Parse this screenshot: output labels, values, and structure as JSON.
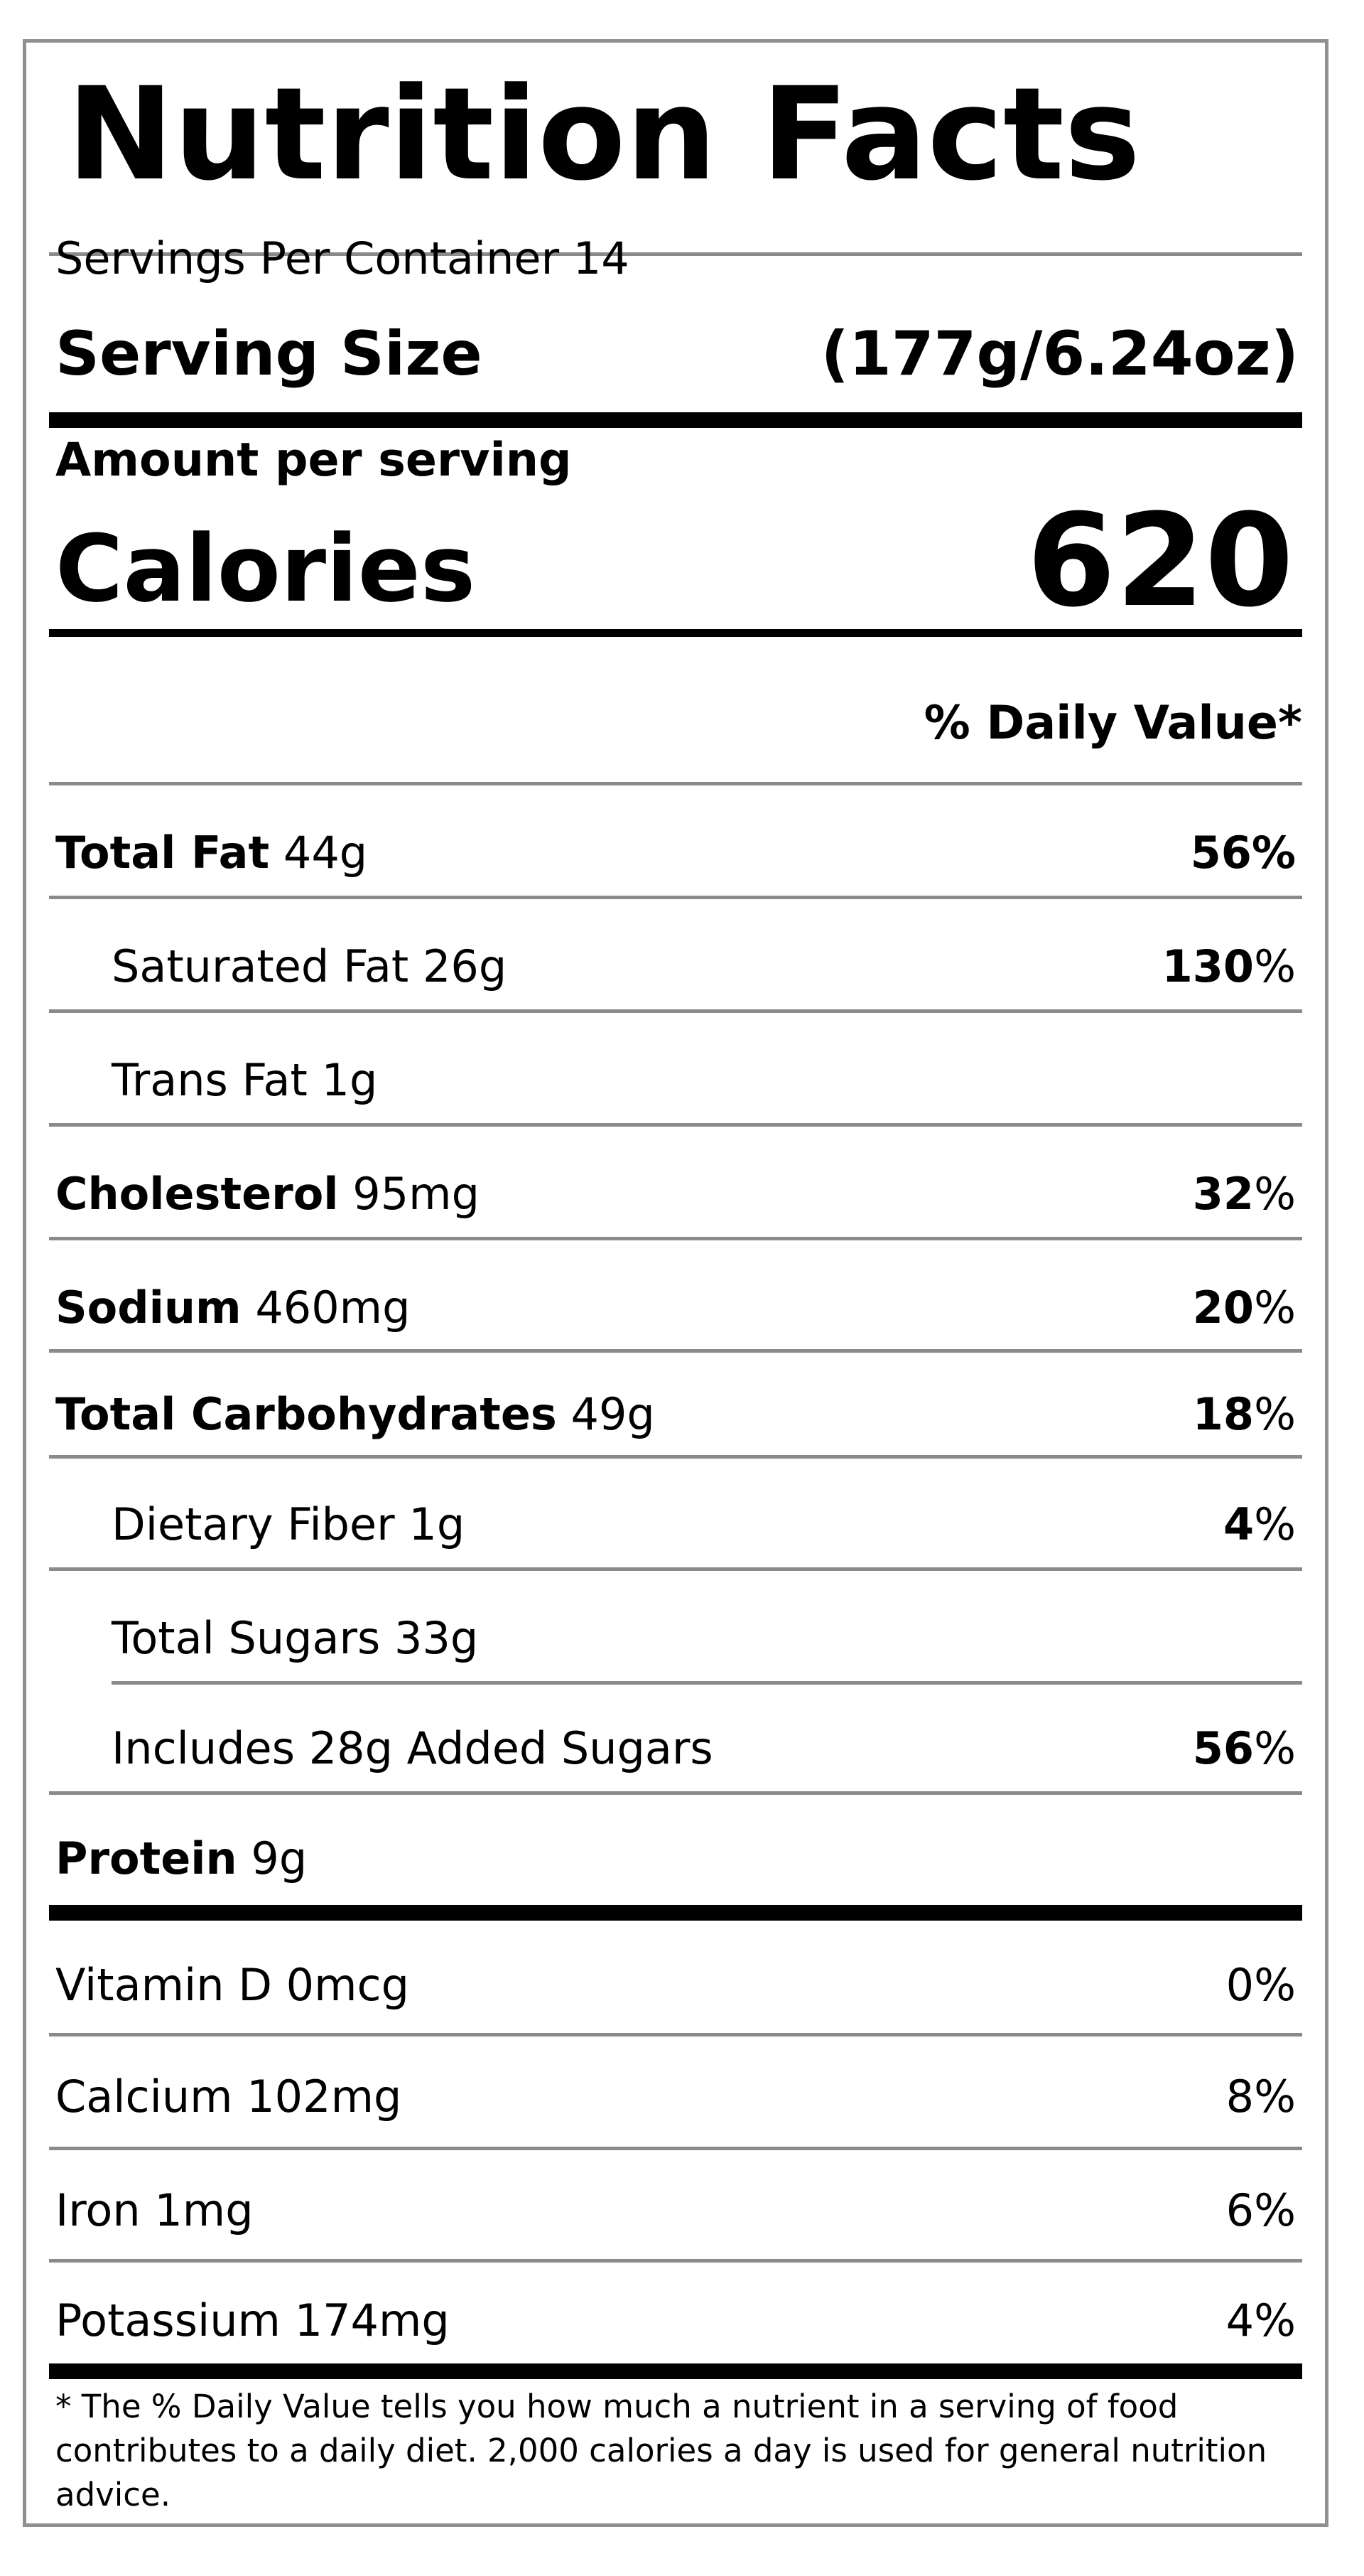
{
  "title": "Nutrition Facts",
  "servings_per_container": "Servings Per Container 14",
  "serving_size": {
    "label": "Serving Size",
    "value": "(177g/6.24oz)"
  },
  "amount_per_serving": "Amount per serving",
  "calories": {
    "label": "Calories",
    "value": "620"
  },
  "daily_value_header": "% Daily Value*",
  "nutrients": [
    {
      "name": "Total Fat",
      "amount": "44g",
      "dv_number": "56",
      "dv_sign": "%"
    },
    {
      "name": "Saturated Fat",
      "amount": "26g",
      "dv_number": "130",
      "dv_sign": "%"
    },
    {
      "name": "Trans Fat",
      "amount": "1g"
    },
    {
      "name": "Cholesterol",
      "amount": "95mg",
      "dv_number": "32",
      "dv_sign": "%"
    },
    {
      "name": "Sodium",
      "amount": "460mg",
      "dv_number": "20",
      "dv_sign": "%"
    },
    {
      "name": "Total Carbohydrates",
      "amount": "49g",
      "dv_number": "18",
      "dv_sign": "%"
    },
    {
      "name": "Dietary Fiber",
      "amount": "1g",
      "dv_number": "4",
      "dv_sign": "%"
    },
    {
      "name": "Total Sugars",
      "amount": "33g"
    },
    {
      "name": "Includes 28g Added Sugars",
      "dv_number": "56",
      "dv_sign": "%"
    },
    {
      "name": "Protein",
      "amount": "9g"
    }
  ],
  "vitamins": [
    {
      "name": "Vitamin D",
      "amount": "0mcg",
      "dv": "0%"
    },
    {
      "name": "Calcium",
      "amount": "102mg",
      "dv": "8%"
    },
    {
      "name": "Iron",
      "amount": "1mg",
      "dv": "6%"
    },
    {
      "name": "Potassium",
      "amount": "174mg",
      "dv": "4%"
    }
  ],
  "footnote": "* The % Daily Value tells you how much a nutrient in a serving of food contributes to a daily diet. 2,000 calories a day is used for general nutrition advice."
}
